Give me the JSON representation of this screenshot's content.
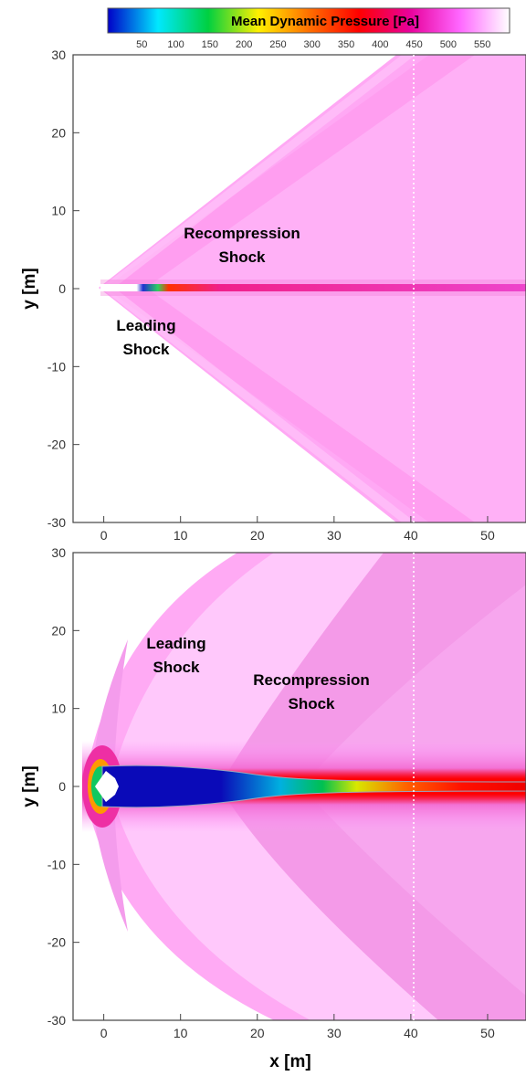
{
  "colorbar": {
    "title": "Mean Dynamic Pressure [Pa]",
    "range": [
      0,
      590
    ],
    "ticks": [
      50,
      100,
      150,
      200,
      250,
      300,
      350,
      400,
      450,
      500,
      550
    ],
    "colors": [
      "#0000c8",
      "#00e8ff",
      "#00d040",
      "#fff000",
      "#ff7000",
      "#ff0000",
      "#e8009a",
      "#ff66ff",
      "#ffffff"
    ]
  },
  "chart_data": [
    {
      "type": "heatmap",
      "panel": "top",
      "title": "",
      "xlabel": "",
      "ylabel": "y [m]",
      "xlim": [
        -4,
        55
      ],
      "ylim": [
        -30,
        30
      ],
      "xticks": [
        0,
        10,
        20,
        30,
        40,
        50
      ],
      "yticks": [
        -30,
        -20,
        -10,
        0,
        10,
        20,
        30
      ],
      "reference_line_x": 40,
      "annotations": [
        {
          "lines": [
            "Recompression",
            "Shock"
          ],
          "x": 18,
          "y": 5.5
        },
        {
          "lines": [
            "Leading",
            "Shock"
          ],
          "x": 5.5,
          "y": -6.5
        }
      ],
      "freestream_pa": 560,
      "wake_centerline_pa": [
        {
          "x": 5,
          "pa": 40
        },
        {
          "x": 7,
          "pa": 60
        },
        {
          "x": 9,
          "pa": 250
        },
        {
          "x": 11,
          "pa": 350
        },
        {
          "x": 15,
          "pa": 380
        },
        {
          "x": 25,
          "pa": 400
        },
        {
          "x": 55,
          "pa": 420
        }
      ]
    },
    {
      "type": "heatmap",
      "panel": "bottom",
      "title": "",
      "xlabel": "x [m]",
      "ylabel": "y [m]",
      "xlim": [
        -4,
        55
      ],
      "ylim": [
        -30,
        30
      ],
      "xticks": [
        0,
        10,
        20,
        30,
        40,
        50
      ],
      "yticks": [
        -30,
        -20,
        -10,
        0,
        10,
        20,
        30
      ],
      "reference_line_x": 40,
      "annotations": [
        {
          "lines": [
            "Leading",
            "Shock"
          ],
          "x": 10,
          "y": 17.5
        },
        {
          "lines": [
            "Recompression",
            "Shock"
          ],
          "x": 30,
          "y": 12.5
        }
      ],
      "freestream_pa": 560,
      "wake_centerline_pa": [
        {
          "x": 1,
          "pa": 30
        },
        {
          "x": 13,
          "pa": 30
        },
        {
          "x": 20,
          "pa": 120
        },
        {
          "x": 25,
          "pa": 200
        },
        {
          "x": 30,
          "pa": 300
        },
        {
          "x": 35,
          "pa": 350
        },
        {
          "x": 55,
          "pa": 370
        }
      ]
    }
  ]
}
